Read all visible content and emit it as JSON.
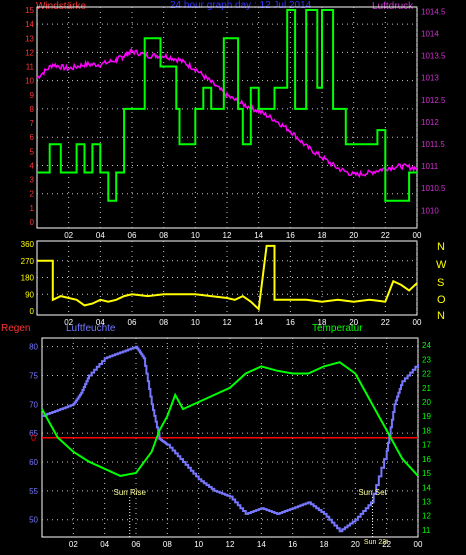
{
  "header": {
    "left_label": "Windstärke",
    "center_label": "24 hour graph day : 12 Jul 2014",
    "right_label": "Luftdruck"
  },
  "panel2_compass": [
    "N",
    "W",
    "S",
    "O",
    "N"
  ],
  "panel3_header": {
    "left_label": "Regen",
    "mid_label": "Luftfeuchte",
    "right_label": "Temperatur"
  },
  "annotations": {
    "sunrise": "Sun Rise",
    "sunset": "Sun Set",
    "sunset_time_overlap": "Sun 22t"
  },
  "colors": {
    "wind": "#00ff00",
    "pressure": "#ff00ff",
    "direction": "#ffff00",
    "humidity": "#7777ff",
    "temperature": "#00ff00",
    "rain": "#ff0000",
    "axis": "#ffffff",
    "grid": "#c8c8c8",
    "header_red": "#ff3333",
    "header_blue": "#3333ff",
    "header_magenta": "#cc33cc",
    "compass_yellow": "#ffff00",
    "temp_ticks": "#00ff00",
    "humidity_ticks": "#7777ff"
  },
  "chart_data": [
    {
      "type": "line",
      "name_ref": "wind-pressure",
      "x_ticks": [
        "02",
        "04",
        "06",
        "08",
        "10",
        "12",
        "14",
        "16",
        "18",
        "20",
        "22",
        "00"
      ],
      "xlim": [
        0,
        24
      ],
      "left_axis": {
        "ticks": [
          "0",
          "1",
          "2",
          "3",
          "4",
          "5",
          "6",
          "7",
          "8",
          "9",
          "10",
          "11",
          "12",
          "13",
          "14",
          "15"
        ],
        "ylim": [
          0,
          15
        ]
      },
      "right_axis": {
        "ticks": [
          "1010",
          "1010.5",
          "1011",
          "1011.5",
          "1012",
          "1012.5",
          "1013",
          "1013.5",
          "1014",
          "1014.5"
        ],
        "ylim": [
          1009.6,
          1014.6
        ]
      },
      "grid": true,
      "series": [
        {
          "axis": "left",
          "step": true,
          "points": [
            [
              0,
              3.5
            ],
            [
              0.8,
              3.5
            ],
            [
              0.8,
              5.5
            ],
            [
              1.5,
              5.5
            ],
            [
              1.5,
              3.5
            ],
            [
              2.5,
              3.5
            ],
            [
              2.5,
              5.5
            ],
            [
              3.0,
              5.5
            ],
            [
              3.0,
              3.5
            ],
            [
              3.5,
              3.5
            ],
            [
              3.5,
              5.5
            ],
            [
              4.0,
              5.5
            ],
            [
              4.0,
              3.5
            ],
            [
              4.5,
              3.5
            ],
            [
              4.5,
              1.5
            ],
            [
              5.0,
              1.5
            ],
            [
              5.0,
              3.5
            ],
            [
              5.5,
              3.5
            ],
            [
              5.5,
              8.0
            ],
            [
              6.8,
              8.0
            ],
            [
              6.8,
              13.0
            ],
            [
              7.8,
              13.0
            ],
            [
              7.8,
              11.0
            ],
            [
              8.8,
              11.0
            ],
            [
              8.8,
              8.0
            ],
            [
              9.0,
              8.0
            ],
            [
              9.0,
              5.5
            ],
            [
              10.0,
              5.5
            ],
            [
              10.0,
              8.0
            ],
            [
              10.5,
              8.0
            ],
            [
              10.5,
              9.5
            ],
            [
              11.0,
              9.5
            ],
            [
              11.0,
              8.0
            ],
            [
              11.8,
              8.0
            ],
            [
              11.8,
              13.0
            ],
            [
              12.7,
              13.0
            ],
            [
              12.7,
              8.0
            ],
            [
              13.0,
              8.0
            ],
            [
              13.0,
              5.5
            ],
            [
              13.5,
              5.5
            ],
            [
              13.5,
              9.5
            ],
            [
              14.0,
              9.5
            ],
            [
              14.0,
              8.0
            ],
            [
              15.0,
              8.0
            ],
            [
              15.0,
              9.5
            ],
            [
              15.8,
              9.5
            ],
            [
              15.8,
              15.0
            ],
            [
              16.3,
              15.0
            ],
            [
              16.3,
              8.0
            ],
            [
              17.0,
              8.0
            ],
            [
              17.0,
              15.0
            ],
            [
              17.7,
              15.0
            ],
            [
              17.7,
              9.5
            ],
            [
              18.0,
              9.5
            ],
            [
              18.0,
              15.0
            ],
            [
              18.7,
              15.0
            ],
            [
              18.7,
              8.0
            ],
            [
              19.5,
              8.0
            ],
            [
              19.5,
              5.5
            ],
            [
              21.5,
              5.5
            ],
            [
              21.5,
              6.5
            ],
            [
              22.0,
              6.5
            ],
            [
              22.0,
              1.5
            ],
            [
              23.5,
              1.5
            ],
            [
              23.5,
              3.5
            ],
            [
              24,
              3.5
            ]
          ]
        },
        {
          "axis": "right",
          "points": [
            [
              0,
              1013.0
            ],
            [
              1,
              1013.3
            ],
            [
              2,
              1013.2
            ],
            [
              3,
              1013.3
            ],
            [
              4,
              1013.3
            ],
            [
              5,
              1013.4
            ],
            [
              5.5,
              1013.5
            ],
            [
              6,
              1013.6
            ],
            [
              7,
              1013.5
            ],
            [
              8,
              1013.5
            ],
            [
              9,
              1013.4
            ],
            [
              10,
              1013.2
            ],
            [
              11,
              1012.9
            ],
            [
              12,
              1012.6
            ],
            [
              13,
              1012.4
            ],
            [
              14,
              1012.25
            ],
            [
              15,
              1012.05
            ],
            [
              16,
              1011.8
            ],
            [
              17,
              1011.45
            ],
            [
              18,
              1011.2
            ],
            [
              19,
              1010.95
            ],
            [
              20,
              1010.8
            ],
            [
              21,
              1010.85
            ],
            [
              22,
              1010.95
            ],
            [
              23,
              1011.0
            ],
            [
              24,
              1010.95
            ]
          ]
        }
      ]
    },
    {
      "type": "line",
      "name_ref": "wind-direction",
      "x_ticks": [
        "02",
        "04",
        "06",
        "08",
        "10",
        "12",
        "14",
        "16",
        "18",
        "20",
        "22",
        "00"
      ],
      "xlim": [
        0,
        24
      ],
      "y_ticks": [
        "0",
        "90",
        "180",
        "270",
        "360"
      ],
      "ylim": [
        0,
        360
      ],
      "grid": true,
      "points": [
        [
          0,
          270
        ],
        [
          1.0,
          270
        ],
        [
          1.0,
          60
        ],
        [
          1.5,
          80
        ],
        [
          2.0,
          70
        ],
        [
          2.5,
          60
        ],
        [
          3.0,
          30
        ],
        [
          3.5,
          40
        ],
        [
          4.0,
          60
        ],
        [
          4.5,
          50
        ],
        [
          5.0,
          60
        ],
        [
          5.5,
          80
        ],
        [
          6.0,
          90
        ],
        [
          7.0,
          80
        ],
        [
          8.0,
          90
        ],
        [
          9.0,
          90
        ],
        [
          10.0,
          90
        ],
        [
          11.0,
          80
        ],
        [
          12.0,
          70
        ],
        [
          12.5,
          60
        ],
        [
          13.0,
          80
        ],
        [
          13.5,
          50
        ],
        [
          14.0,
          10
        ],
        [
          14.5,
          350
        ],
        [
          15.0,
          350
        ],
        [
          15.0,
          60
        ],
        [
          16.0,
          60
        ],
        [
          17.0,
          60
        ],
        [
          18.0,
          50
        ],
        [
          19.0,
          60
        ],
        [
          20.0,
          50
        ],
        [
          21.0,
          60
        ],
        [
          22.0,
          50
        ],
        [
          22.5,
          160
        ],
        [
          23.0,
          140
        ],
        [
          23.5,
          110
        ],
        [
          24,
          150
        ]
      ]
    },
    {
      "type": "line",
      "name_ref": "humidity-temperature",
      "x_ticks": [
        "02",
        "04",
        "06",
        "08",
        "10",
        "12",
        "14",
        "16",
        "18",
        "20",
        "22",
        "00"
      ],
      "xlim": [
        0,
        24
      ],
      "left_axis": {
        "ticks": [
          "50",
          "55",
          "60",
          "65",
          "70",
          "75",
          "80"
        ],
        "ylim": [
          47,
          81.5
        ]
      },
      "right_axis": {
        "ticks": [
          "11",
          "12",
          "13",
          "14",
          "15",
          "16",
          "17",
          "18",
          "19",
          "20",
          "21",
          "22",
          "23",
          "24"
        ],
        "ylim": [
          10.5,
          24.5
        ]
      },
      "rain_value_label": "0",
      "rain_level_humidity_units": 64.2,
      "grid": true,
      "series": [
        {
          "axis": "left",
          "name_ref": "humidity",
          "points": [
            [
              0,
              68
            ],
            [
              1,
              69
            ],
            [
              2,
              70
            ],
            [
              2.5,
              72
            ],
            [
              3,
              75
            ],
            [
              4,
              78
            ],
            [
              5,
              79
            ],
            [
              6,
              80
            ],
            [
              6.5,
              78
            ],
            [
              7,
              70
            ],
            [
              7.5,
              64
            ],
            [
              8,
              63
            ],
            [
              9,
              60
            ],
            [
              10,
              57
            ],
            [
              11,
              55
            ],
            [
              12,
              54
            ],
            [
              13,
              51
            ],
            [
              14,
              52
            ],
            [
              15,
              51
            ],
            [
              16,
              52
            ],
            [
              17,
              53
            ],
            [
              18,
              51
            ],
            [
              19,
              48
            ],
            [
              20,
              50
            ],
            [
              21,
              53
            ],
            [
              22,
              62
            ],
            [
              22.5,
              70
            ],
            [
              23,
              74
            ],
            [
              24,
              77
            ]
          ]
        },
        {
          "axis": "right",
          "name_ref": "temperature",
          "points": [
            [
              0,
              19.5
            ],
            [
              1,
              17.5
            ],
            [
              2,
              16.5
            ],
            [
              3,
              15.8
            ],
            [
              4,
              15.3
            ],
            [
              5,
              14.8
            ],
            [
              6,
              15.0
            ],
            [
              7,
              16.5
            ],
            [
              7.5,
              18.0
            ],
            [
              8,
              19.0
            ],
            [
              8.5,
              20.5
            ],
            [
              9,
              19.5
            ],
            [
              10,
              20.0
            ],
            [
              11,
              20.5
            ],
            [
              12,
              21.0
            ],
            [
              13,
              22.0
            ],
            [
              14,
              22.5
            ],
            [
              15,
              22.2
            ],
            [
              16,
              22.0
            ],
            [
              17,
              22.0
            ],
            [
              18,
              22.5
            ],
            [
              19,
              22.8
            ],
            [
              20,
              22.0
            ],
            [
              21,
              20.0
            ],
            [
              22,
              18.0
            ],
            [
              23,
              16.0
            ],
            [
              24,
              14.8
            ]
          ]
        }
      ],
      "annotations": [
        {
          "label_ref": "sunrise",
          "x": 5.6
        },
        {
          "label_ref": "sunset",
          "x": 21.1
        }
      ]
    }
  ]
}
